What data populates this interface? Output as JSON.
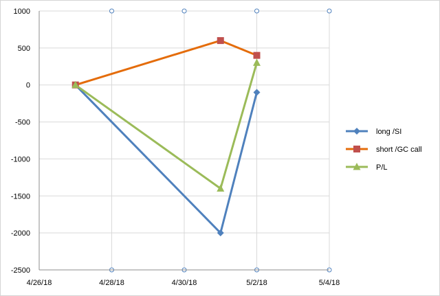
{
  "chart_data": {
    "type": "scatter",
    "title": "",
    "xlabel": "",
    "ylabel": "",
    "x_type": "date",
    "xlim": [
      "2018-04-26",
      "2018-05-04"
    ],
    "ylim": [
      -2500,
      1000
    ],
    "x_ticks": [
      "2018-04-26",
      "2018-04-28",
      "2018-04-30",
      "2018-05-02",
      "2018-05-04"
    ],
    "x_tick_labels": [
      "4/26/18",
      "4/28/18",
      "4/30/18",
      "5/2/18",
      "5/4/18"
    ],
    "y_ticks": [
      1000,
      500,
      0,
      -500,
      -1000,
      -1500,
      -2000,
      -2500
    ],
    "y_tick_labels": [
      "1000",
      "500",
      "0",
      "-500",
      "-1000",
      "-1500",
      "-2000",
      "-2500"
    ],
    "grid": true,
    "legend_position": "right",
    "series": [
      {
        "name": "long /SI",
        "color": "#4F81BD",
        "marker": "diamond",
        "x": [
          "2018-04-27",
          "2018-05-01",
          "2018-05-02"
        ],
        "y": [
          0,
          -2000,
          -100
        ]
      },
      {
        "name": "short /GC call",
        "color": "#E46C0A",
        "marker_color": "#C0504D",
        "marker": "square",
        "x": [
          "2018-04-27",
          "2018-05-01",
          "2018-05-02"
        ],
        "y": [
          0,
          600,
          400
        ]
      },
      {
        "name": "P/L",
        "color": "#9BBB59",
        "marker": "triangle",
        "x": [
          "2018-04-27",
          "2018-05-01",
          "2018-05-02"
        ],
        "y": [
          0,
          -1400,
          300
        ]
      }
    ]
  }
}
